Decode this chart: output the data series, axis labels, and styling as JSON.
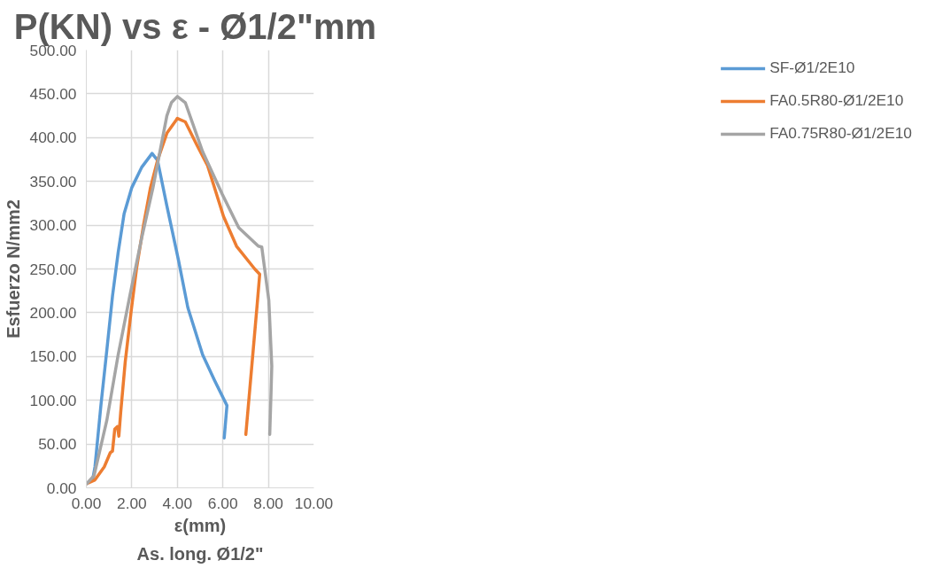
{
  "chart_data": {
    "type": "line",
    "title": "P(KN) vs ε  - Ø1/2\"mm",
    "xlabel": "ε(mm)",
    "ylabel": "Esfuerzo N/mm2",
    "annotations": [
      "As. long. Ø1/2\""
    ],
    "xlim": [
      0,
      10
    ],
    "ylim": [
      0,
      500
    ],
    "xticks": [
      {
        "value": 0,
        "label": "0.00"
      },
      {
        "value": 2,
        "label": "2.00"
      },
      {
        "value": 4,
        "label": "4.00"
      },
      {
        "value": 6,
        "label": "6.00"
      },
      {
        "value": 8,
        "label": "8.00"
      },
      {
        "value": 10,
        "label": "10.00"
      }
    ],
    "yticks": [
      {
        "value": 0,
        "label": "0.00"
      },
      {
        "value": 50,
        "label": "50.00"
      },
      {
        "value": 100,
        "label": "100.00"
      },
      {
        "value": 150,
        "label": "150.00"
      },
      {
        "value": 200,
        "label": "200.00"
      },
      {
        "value": 250,
        "label": "250.00"
      },
      {
        "value": 300,
        "label": "300.00"
      },
      {
        "value": 350,
        "label": "350.00"
      },
      {
        "value": 400,
        "label": "400.00"
      },
      {
        "value": 450,
        "label": "450.00"
      },
      {
        "value": 500,
        "label": "500.00"
      }
    ],
    "grid": true,
    "legend": "right",
    "marker": "none",
    "line_style": "solid",
    "series": [
      {
        "name": "SF-Ø1/2E10",
        "color": "#5b9bd5",
        "x": [
          0.03,
          0.29,
          0.38,
          0.64,
          0.9,
          1.15,
          1.4,
          1.66,
          2.0,
          2.43,
          2.89,
          3.13,
          3.54,
          4.05,
          4.46,
          5.11,
          5.63,
          6.18,
          6.06
        ],
        "values": [
          5,
          11,
          24,
          94,
          157,
          219,
          269,
          313,
          343,
          366,
          382,
          374,
          322,
          260,
          206,
          152,
          123,
          94,
          57
        ]
      },
      {
        "name": "FA0.5R80-Ø1/2E10",
        "color": "#ed7d31",
        "x": [
          0.03,
          0.38,
          0.79,
          1.05,
          1.15,
          1.25,
          1.37,
          1.43,
          1.51,
          1.71,
          1.97,
          2.21,
          2.52,
          2.82,
          3.13,
          3.54,
          3.95,
          4.0,
          4.35,
          4.87,
          5.33,
          6.03,
          6.6,
          7.4,
          7.62,
          7.51,
          7.01
        ],
        "values": [
          5,
          9,
          24,
          40,
          42,
          67,
          70,
          59,
          86,
          144,
          202,
          251,
          301,
          343,
          374,
          405,
          420,
          422,
          418,
          391,
          368,
          310,
          276,
          250,
          244,
          210,
          61
        ]
      },
      {
        "name": "FA0.75R80-Ø1/2E10",
        "color": "#a5a5a5",
        "x": [
          0.03,
          0.34,
          0.9,
          1.4,
          1.91,
          2.43,
          2.93,
          3.54,
          3.74,
          4.0,
          4.35,
          5.11,
          5.98,
          6.7,
          7.56,
          7.71,
          8.02,
          8.15,
          8.12,
          8.06
        ],
        "values": [
          5,
          14,
          77,
          152,
          219,
          285,
          343,
          425,
          440,
          447,
          440,
          384,
          335,
          297,
          276,
          275,
          214,
          139,
          111,
          61
        ]
      }
    ]
  }
}
